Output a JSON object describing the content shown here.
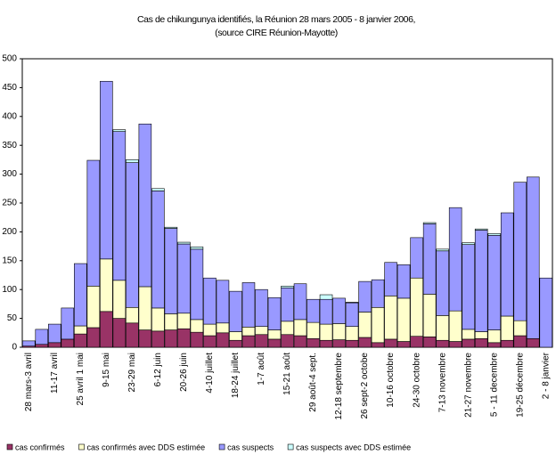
{
  "chart_data": {
    "type": "stacked-bar",
    "title": "Cas de chikungunya identifiés, la Réunion 28 mars 2005 - 8 janvier 2006,",
    "subtitle": "(source CIRE Réunion-Mayotte)",
    "categories": [
      "28 mars-3 avril",
      null,
      "11-17 avril",
      null,
      "25 avril 1 mai",
      null,
      "9-15 mai",
      null,
      "23-29 mai",
      null,
      "6-12 juin",
      null,
      "20-26 juin",
      null,
      "4-10 juillet",
      null,
      "18-24 juillet",
      null,
      "1-7 août",
      null,
      "15-21 août",
      null,
      "29 août-4 sept.",
      null,
      "12-18 septembre",
      null,
      "26 sept-2 octobe",
      null,
      "10-16 octobre",
      null,
      "24-30 octobre",
      null,
      "7-13 novembre",
      null,
      "21-27 novembre",
      null,
      "5 - 11 decembre",
      null,
      "19-25 décembre",
      null,
      "2 - 8 janvier"
    ],
    "series": [
      {
        "name": "cas confirmés",
        "color": "#993366",
        "values": [
          2,
          5,
          8,
          14,
          23,
          34,
          62,
          50,
          42,
          30,
          28,
          30,
          32,
          26,
          20,
          25,
          12,
          20,
          22,
          14,
          22,
          20,
          15,
          12,
          13,
          12,
          17,
          8,
          14,
          10,
          19,
          18,
          12,
          10,
          14,
          15,
          8,
          12,
          20,
          15,
          0
        ]
      },
      {
        "name": "cas confirmés avec DDS estimée",
        "color": "#ffffcc",
        "values": [
          0,
          0,
          0,
          0,
          14,
          72,
          91,
          66,
          27,
          75,
          40,
          28,
          27,
          22,
          20,
          17,
          15,
          15,
          14,
          16,
          23,
          28,
          28,
          28,
          28,
          24,
          44,
          61,
          75,
          75,
          101,
          74,
          43,
          53,
          17,
          12,
          22,
          42,
          26,
          0,
          0
        ]
      },
      {
        "name": "cas suspects",
        "color": "#9999ff",
        "values": [
          9,
          26,
          32,
          54,
          108,
          218,
          308,
          258,
          251,
          282,
          203,
          148,
          120,
          122,
          80,
          74,
          70,
          77,
          64,
          56,
          58,
          62,
          40,
          43,
          44,
          41,
          53,
          48,
          58,
          58,
          70,
          122,
          112,
          179,
          147,
          176,
          164,
          179,
          240,
          280,
          120
        ]
      },
      {
        "name": "cas suspects avec DDS estimée",
        "color": "#ccffff",
        "values": [
          0,
          0,
          0,
          0,
          0,
          0,
          0,
          3,
          5,
          0,
          4,
          2,
          3,
          4,
          0,
          0,
          0,
          0,
          0,
          0,
          3,
          0,
          0,
          8,
          0,
          1,
          0,
          0,
          0,
          0,
          0,
          2,
          3,
          0,
          3,
          2,
          3,
          0,
          0,
          0,
          0
        ]
      }
    ],
    "ylim": [
      0,
      500
    ],
    "yticks": [
      0,
      50,
      100,
      150,
      200,
      250,
      300,
      350,
      400,
      450,
      500
    ]
  }
}
